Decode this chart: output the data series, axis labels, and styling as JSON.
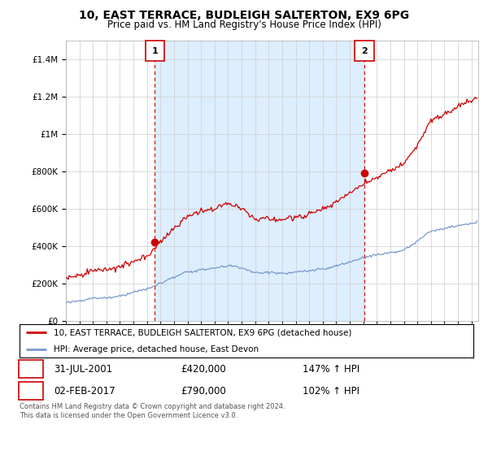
{
  "title": "10, EAST TERRACE, BUDLEIGH SALTERTON, EX9 6PG",
  "subtitle": "Price paid vs. HM Land Registry's House Price Index (HPI)",
  "legend_line1": "10, EAST TERRACE, BUDLEIGH SALTERTON, EX9 6PG (detached house)",
  "legend_line2": "HPI: Average price, detached house, East Devon",
  "sale1_date": "31-JUL-2001",
  "sale1_price": "£420,000",
  "sale1_hpi": "147% ↑ HPI",
  "sale2_date": "02-FEB-2017",
  "sale2_price": "£790,000",
  "sale2_hpi": "102% ↑ HPI",
  "footer": "Contains HM Land Registry data © Crown copyright and database right 2024.\nThis data is licensed under the Open Government Licence v3.0.",
  "sale1_year": 2001.58,
  "sale1_value": 420000,
  "sale2_year": 2017.08,
  "sale2_value": 790000,
  "red_line_color": "#cc0000",
  "blue_line_color": "#7799cc",
  "shade_color": "#ddeeff",
  "background_color": "#ffffff",
  "grid_color": "#cccccc",
  "ylim_max": 1500000,
  "xmin": 1995.0,
  "xmax": 2025.5
}
